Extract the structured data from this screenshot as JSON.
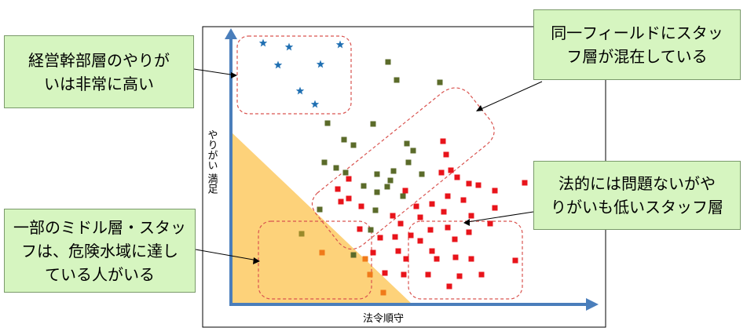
{
  "axes": {
    "x_label": "法令順守",
    "y_label": "やりがい 満足",
    "axis_color": "#4a7ebb"
  },
  "callouts": {
    "executives": [
      "経営幹部層のやりが",
      "いは非常に高い"
    ],
    "mixed": [
      "同一フィールドにスタッ",
      "フ層が混在している"
    ],
    "low_motivation": [
      "法的には問題ないがや",
      "りがいも低いスタッフ層"
    ],
    "danger": [
      "一部のミドル層・スタッ",
      "フは、危険水域に達し",
      "ている人がいる"
    ]
  },
  "colors": {
    "danger_zone": "#fdd27a",
    "dashed_cluster": "#d9534f",
    "executive_star": "#1f6fb2",
    "staff_olive": "#5b6b2a",
    "staff_red": "#e8141b",
    "middle_orange": "#f07a1a",
    "middle_olive": "#9a8a2a",
    "callout_fill": "#d6f5c0"
  },
  "points": {
    "executives_star": [
      [
        335,
        55
      ],
      [
        368,
        60
      ],
      [
        433,
        57
      ],
      [
        354,
        83
      ],
      [
        408,
        82
      ],
      [
        382,
        116
      ],
      [
        401,
        133
      ]
    ],
    "staff_olive": [
      [
        494,
        79
      ],
      [
        505,
        102
      ],
      [
        560,
        105
      ],
      [
        417,
        157
      ],
      [
        475,
        158
      ],
      [
        438,
        178
      ],
      [
        450,
        185
      ],
      [
        518,
        183
      ],
      [
        526,
        192
      ],
      [
        413,
        207
      ],
      [
        428,
        214
      ],
      [
        440,
        220
      ],
      [
        480,
        222
      ],
      [
        501,
        218
      ],
      [
        520,
        207
      ],
      [
        537,
        222
      ],
      [
        463,
        237
      ],
      [
        480,
        245
      ],
      [
        493,
        238
      ],
      [
        497,
        230
      ],
      [
        513,
        250
      ],
      [
        407,
        267
      ],
      [
        478,
        268
      ],
      [
        472,
        293
      ],
      [
        450,
        325
      ]
    ],
    "staff_red": [
      [
        564,
        180
      ],
      [
        568,
        197
      ],
      [
        574,
        217
      ],
      [
        562,
        220
      ],
      [
        582,
        226
      ],
      [
        444,
        228
      ],
      [
        430,
        241
      ],
      [
        516,
        243
      ],
      [
        444,
        253
      ],
      [
        434,
        257
      ],
      [
        460,
        263
      ],
      [
        530,
        263
      ],
      [
        550,
        260
      ],
      [
        570,
        250
      ],
      [
        590,
        255
      ],
      [
        609,
        236
      ],
      [
        630,
        243
      ],
      [
        668,
        233
      ],
      [
        597,
        234
      ],
      [
        535,
        277
      ],
      [
        565,
        270
      ],
      [
        600,
        275
      ],
      [
        630,
        265
      ],
      [
        500,
        275
      ],
      [
        510,
        285
      ],
      [
        458,
        292
      ],
      [
        597,
        296
      ],
      [
        624,
        285
      ],
      [
        548,
        293
      ],
      [
        570,
        290
      ],
      [
        484,
        303
      ],
      [
        503,
        302
      ],
      [
        523,
        300
      ],
      [
        579,
        305
      ],
      [
        535,
        307
      ],
      [
        475,
        322
      ],
      [
        507,
        320
      ],
      [
        550,
        320
      ],
      [
        517,
        330
      ],
      [
        556,
        330
      ],
      [
        580,
        328
      ],
      [
        600,
        330
      ],
      [
        656,
        332
      ],
      [
        490,
        348
      ],
      [
        514,
        350
      ],
      [
        545,
        350
      ],
      [
        585,
        352
      ],
      [
        572,
        365
      ],
      [
        613,
        350
      ]
    ],
    "middle_orange": [
      [
        410,
        322
      ],
      [
        465,
        330
      ],
      [
        471,
        350
      ],
      [
        488,
        373
      ]
    ],
    "middle_olive": [
      [
        384,
        298
      ]
    ]
  }
}
